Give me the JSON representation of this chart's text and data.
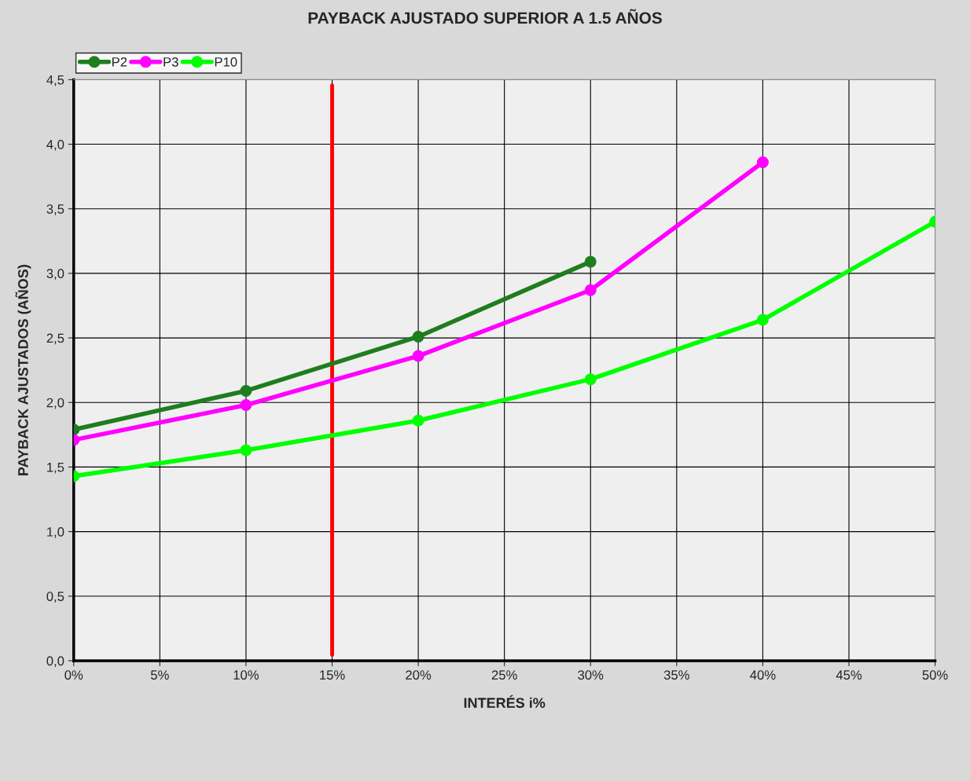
{
  "chart_data": {
    "type": "line",
    "title": "PAYBACK AJUSTADO SUPERIOR A 1.5 AÑOS",
    "xlabel": "INTERÉS i%",
    "ylabel": "PAYBACK AJUSTADOS (AÑOS)",
    "series": [
      {
        "name": "P2",
        "color": "#1e7d1e",
        "x": [
          0,
          10,
          20,
          30
        ],
        "values": [
          1.79,
          2.09,
          2.51,
          3.09
        ]
      },
      {
        "name": "P3",
        "color": "#ff00ff",
        "x": [
          0,
          10,
          20,
          30,
          40
        ],
        "values": [
          1.71,
          1.98,
          2.36,
          2.87,
          3.86
        ]
      },
      {
        "name": "P10",
        "color": "#00ff00",
        "x": [
          0,
          10,
          20,
          30,
          40,
          50
        ],
        "values": [
          1.43,
          1.63,
          1.86,
          2.18,
          2.64,
          3.4
        ]
      }
    ],
    "xlim": [
      0,
      50
    ],
    "xticks": [
      {
        "value": 0,
        "label": "0%"
      },
      {
        "value": 5,
        "label": "5%"
      },
      {
        "value": 10,
        "label": "10%"
      },
      {
        "value": 15,
        "label": "15%"
      },
      {
        "value": 20,
        "label": "20%"
      },
      {
        "value": 25,
        "label": "25%"
      },
      {
        "value": 30,
        "label": "30%"
      },
      {
        "value": 35,
        "label": "35%"
      },
      {
        "value": 40,
        "label": "40%"
      },
      {
        "value": 45,
        "label": "45%"
      },
      {
        "value": 50,
        "label": "50%"
      }
    ],
    "ylim": [
      0,
      4.5
    ],
    "yticks": [
      {
        "value": 0,
        "label": "0,0"
      },
      {
        "value": 0.5,
        "label": "0,5"
      },
      {
        "value": 1,
        "label": "1,0"
      },
      {
        "value": 1.5,
        "label": "1,5"
      },
      {
        "value": 2,
        "label": "2,0"
      },
      {
        "value": 2.5,
        "label": "2,5"
      },
      {
        "value": 3,
        "label": "3,0"
      },
      {
        "value": 3.5,
        "label": "3,5"
      },
      {
        "value": 4,
        "label": "4,0"
      },
      {
        "value": 4.5,
        "label": "4,5"
      }
    ],
    "ref_lines": [
      {
        "axis": "x",
        "value": 15,
        "color": "#ff0000"
      }
    ],
    "grid": true,
    "legend": "top left",
    "marker": "circle",
    "line_style": "solid"
  }
}
